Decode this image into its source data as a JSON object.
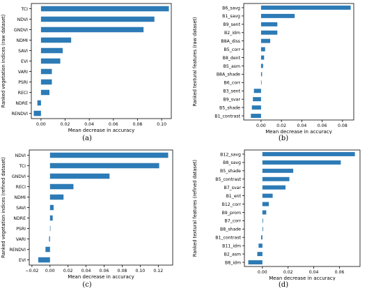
{
  "bar_color": "#2d7bb6",
  "chart_data": [
    {
      "type": "bar",
      "orientation": "horizontal",
      "caption": "(a)",
      "ylabel": "Ranked vegetation indices (raw dataset)",
      "xlabel": "Mean decrease in accuracy",
      "xlim": [
        -0.008,
        0.108
      ],
      "xticks": [
        "0.00",
        "0.02",
        "0.04",
        "0.06",
        "0.08",
        "0.10"
      ],
      "categories": [
        "TCI",
        "NDVI",
        "GNDVI",
        "NDMI",
        "SAVI",
        "EVI",
        "VARI",
        "PSRI",
        "RECI",
        "NDRE",
        "RENDVI"
      ],
      "values": [
        0.106,
        0.094,
        0.085,
        0.025,
        0.018,
        0.016,
        0.009,
        0.009,
        0.007,
        -0.003,
        -0.006
      ]
    },
    {
      "type": "bar",
      "orientation": "horizontal",
      "caption": "(b)",
      "ylabel": "Ranked textural features (raw dataset)",
      "xlabel": "Mean decrease in accuracy",
      "xlim": [
        -0.017,
        0.091
      ],
      "xticks": [
        "0.00",
        "0.02",
        "0.04",
        "0.06",
        "0.08"
      ],
      "categories": [
        "B6_savg",
        "B1_savg",
        "B9_sent",
        "B2_idm",
        "B8A_diss",
        "B5_corr",
        "B8_dent",
        "B5_asm",
        "B8A_shade",
        "B6_corr",
        "B3_sent",
        "B9_svar",
        "B5_shade",
        "B1_contrast"
      ],
      "values": [
        0.088,
        0.033,
        0.016,
        0.016,
        0.009,
        0.004,
        0.003,
        0.002,
        0.001,
        0.0005,
        -0.007,
        -0.008,
        -0.009,
        -0.01
      ]
    },
    {
      "type": "bar",
      "orientation": "horizontal",
      "caption": "(c)",
      "ylabel": "Ranked vegetation indices (refined dataset)",
      "xlabel": "Mean decrease in accuracy",
      "xlim": [
        -0.023,
        0.136
      ],
      "xticks": [
        "−0.02",
        "0.00",
        "0.02",
        "0.04",
        "0.06",
        "0.08",
        "0.10",
        "0.12"
      ],
      "categories": [
        "NDVI",
        "TCI",
        "GNDVI",
        "RECI",
        "NDMI",
        "SAVI",
        "NDRE",
        "PSRI",
        "VARI",
        "RENDVI",
        "EVI"
      ],
      "values": [
        0.131,
        0.121,
        0.066,
        0.026,
        0.015,
        0.004,
        0.003,
        0.0005,
        -0.001,
        -0.005,
        -0.013
      ]
    },
    {
      "type": "bar",
      "orientation": "horizontal",
      "caption": "(d)",
      "ylabel": "Ranked textural features (refined dataset)",
      "xlabel": "Mean decrease in accuracy",
      "xlim": [
        -0.014,
        0.076
      ],
      "xticks": [
        "0.00",
        "0.02",
        "0.04",
        "0.06"
      ],
      "categories": [
        "B12_savg",
        "B8_savg",
        "B5_shade",
        "B5_contrast",
        "B7_svar",
        "B1_ent",
        "B12_corr",
        "B9_prom",
        "B7_corr",
        "B8_shade",
        "B1_contrast",
        "B11_idm",
        "B2_asm",
        "B8_idm"
      ],
      "values": [
        0.072,
        0.061,
        0.024,
        0.021,
        0.018,
        0.008,
        0.005,
        0.003,
        0.0005,
        0.0005,
        -0.001,
        -0.003,
        -0.004,
        -0.011
      ]
    }
  ]
}
